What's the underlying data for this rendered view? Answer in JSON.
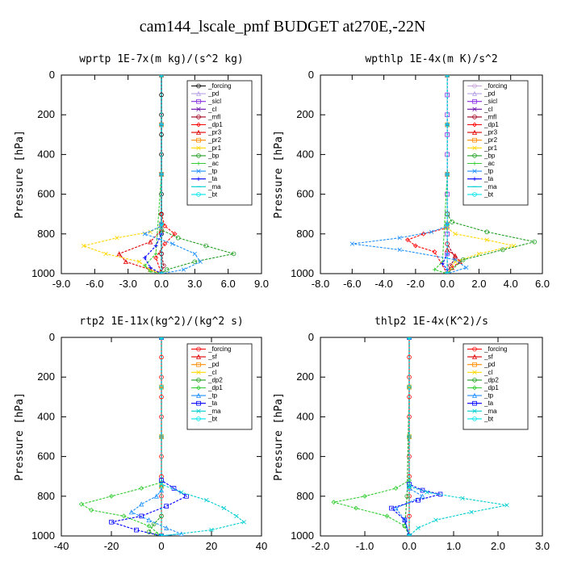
{
  "title": "cam144_lscale_pmf  BUDGET at270E,-22N",
  "chart_data": [
    {
      "type": "line",
      "title": "wprtp  1E-7x(m kg)/(s^2 kg)",
      "ylabel": "Pressure [hPa]",
      "xlim": [
        -9,
        9
      ],
      "ylim": [
        1000,
        0
      ],
      "xticks": [
        "-9.0",
        "-6.0",
        "-3.0",
        "0.0",
        "3.0",
        "6.0",
        "9.0"
      ],
      "yticks": [
        "0",
        "200",
        "400",
        "600",
        "800",
        "1000"
      ],
      "grid": false,
      "legend": "top-right",
      "series": [
        {
          "name": "_forcing",
          "color": "#000000",
          "x": [
            0,
            0,
            0,
            0,
            0,
            0,
            0,
            0,
            0,
            0,
            0
          ],
          "y": [
            0,
            100,
            200,
            300,
            400,
            500,
            600,
            700,
            800,
            900,
            1000
          ]
        },
        {
          "name": "_pd",
          "color": "#b4a0e6",
          "x": [
            0,
            0,
            0,
            0,
            0
          ],
          "y": [
            0,
            250,
            500,
            750,
            1000
          ]
        },
        {
          "name": "_sicl",
          "color": "#8a2be2",
          "x": [
            0,
            0,
            0,
            0,
            0
          ],
          "y": [
            0,
            250,
            500,
            750,
            1000
          ]
        },
        {
          "name": "_cl",
          "color": "#6a0dad",
          "x": [
            0,
            0,
            0,
            0,
            0
          ],
          "y": [
            0,
            250,
            500,
            750,
            1000
          ]
        },
        {
          "name": "_mfl",
          "color": "#a0001e",
          "x": [
            0,
            0,
            0,
            0.2,
            0
          ],
          "y": [
            0,
            500,
            900,
            960,
            1000
          ]
        },
        {
          "name": "_dp1",
          "color": "#ff0000",
          "x": [
            0,
            0,
            0.3,
            1.2,
            0.3,
            -0.5,
            0
          ],
          "y": [
            0,
            700,
            760,
            800,
            850,
            920,
            1000
          ]
        },
        {
          "name": "_pr3",
          "color": "#e00000",
          "x": [
            0,
            0,
            -1.0,
            -3.8,
            -3.2,
            -1.0,
            0
          ],
          "y": [
            0,
            780,
            840,
            900,
            940,
            980,
            1000
          ]
        },
        {
          "name": "_pr2",
          "color": "#ff8c00",
          "x": [
            0,
            0,
            0,
            0,
            0
          ],
          "y": [
            0,
            250,
            500,
            750,
            1000
          ]
        },
        {
          "name": "_pr1",
          "color": "#ffd700",
          "x": [
            0,
            0,
            -1.0,
            -4.0,
            -7.0,
            -5.0,
            -2.0,
            -1.0,
            0
          ],
          "y": [
            0,
            760,
            790,
            820,
            860,
            900,
            940,
            980,
            1000
          ]
        },
        {
          "name": "_bp",
          "color": "#20a020",
          "x": [
            0,
            0,
            1.5,
            4.0,
            6.5,
            3.0,
            0.5,
            0
          ],
          "y": [
            0,
            780,
            820,
            860,
            900,
            940,
            980,
            1000
          ]
        },
        {
          "name": "_ac",
          "color": "#32cd32",
          "x": [
            0,
            0,
            0,
            -0.5,
            -1.5,
            -1.0,
            0
          ],
          "y": [
            0,
            250,
            500,
            900,
            960,
            990,
            1000
          ]
        },
        {
          "name": "_tp",
          "color": "#1e90ff",
          "x": [
            0,
            0,
            -1.5,
            1.0,
            3.0,
            3.5,
            2.0,
            0
          ],
          "y": [
            0,
            760,
            800,
            850,
            900,
            940,
            980,
            1000
          ]
        },
        {
          "name": "_ta",
          "color": "#0000ff",
          "x": [
            0,
            0,
            -0.5,
            -1.5,
            -1.0,
            0
          ],
          "y": [
            0,
            800,
            860,
            920,
            970,
            1000
          ]
        },
        {
          "name": "_ma",
          "color": "#00ced1",
          "x": [
            0,
            0,
            0,
            0,
            0
          ],
          "y": [
            0,
            250,
            500,
            750,
            1000
          ]
        },
        {
          "name": "_bt",
          "color": "#00e5ee",
          "x": [
            0,
            0,
            0,
            0,
            0
          ],
          "y": [
            0,
            250,
            500,
            750,
            1000
          ]
        }
      ]
    },
    {
      "type": "line",
      "title": "wpthlp  1E-4x(m K)/s^2",
      "ylabel": "Pressure [hPa]",
      "xlim": [
        -8,
        6
      ],
      "ylim": [
        1000,
        0
      ],
      "xticks": [
        "-8.0",
        "-6.0",
        "-4.0",
        "-2.0",
        "0.0",
        "2.0",
        "4.0",
        "6.0"
      ],
      "yticks": [
        "0",
        "200",
        "400",
        "600",
        "800",
        "1000"
      ],
      "grid": false,
      "legend": "top-right",
      "series": [
        {
          "name": "_forcing",
          "color": "#c8a0dc",
          "x": [
            0,
            0,
            0,
            0,
            0
          ],
          "y": [
            0,
            250,
            500,
            750,
            1000
          ]
        },
        {
          "name": "_pd",
          "color": "#b4a0e6",
          "x": [
            0,
            0,
            0,
            0,
            0
          ],
          "y": [
            0,
            250,
            500,
            750,
            1000
          ]
        },
        {
          "name": "_sicl",
          "color": "#8a2be2",
          "x": [
            0,
            0,
            0,
            0,
            0,
            0,
            0,
            0,
            0,
            0,
            0
          ],
          "y": [
            0,
            100,
            200,
            300,
            400,
            500,
            600,
            700,
            800,
            900,
            1000
          ]
        },
        {
          "name": "_cl",
          "color": "#6a0dad",
          "x": [
            0,
            0,
            0,
            0,
            0
          ],
          "y": [
            0,
            250,
            500,
            750,
            1000
          ]
        },
        {
          "name": "_mfl",
          "color": "#a0001e",
          "x": [
            0,
            0,
            0.5,
            0.2,
            0
          ],
          "y": [
            0,
            850,
            920,
            960,
            1000
          ]
        },
        {
          "name": "_dp1",
          "color": "#ff0000",
          "x": [
            0,
            0,
            -1.5,
            -2.5,
            -2.0,
            -0.8,
            0
          ],
          "y": [
            0,
            770,
            800,
            830,
            860,
            890,
            1000
          ]
        },
        {
          "name": "_pr3",
          "color": "#e00000",
          "x": [
            0,
            0,
            0.5,
            0.8,
            0.3,
            0
          ],
          "y": [
            0,
            880,
            910,
            940,
            970,
            1000
          ]
        },
        {
          "name": "_pr2",
          "color": "#ff8c00",
          "x": [
            0,
            0,
            0,
            0,
            0
          ],
          "y": [
            0,
            250,
            500,
            750,
            1000
          ]
        },
        {
          "name": "_pr1",
          "color": "#ffd700",
          "x": [
            0,
            0,
            0.5,
            2.5,
            4.2,
            2.0,
            0.5,
            0
          ],
          "y": [
            0,
            770,
            800,
            830,
            860,
            900,
            940,
            1000
          ]
        },
        {
          "name": "_bp",
          "color": "#20a020",
          "x": [
            0,
            0,
            0.3,
            2.5,
            5.5,
            3.5,
            1.0,
            0
          ],
          "y": [
            0,
            700,
            740,
            790,
            840,
            880,
            930,
            1000
          ]
        },
        {
          "name": "_ac",
          "color": "#32cd32",
          "x": [
            0,
            0,
            0,
            -0.3,
            -0.8,
            0
          ],
          "y": [
            0,
            250,
            500,
            940,
            980,
            1000
          ]
        },
        {
          "name": "_tp",
          "color": "#1e90ff",
          "x": [
            0,
            0,
            -1.0,
            -3.0,
            -6.0,
            -3.0,
            0.5,
            1.2,
            0
          ],
          "y": [
            0,
            760,
            790,
            820,
            850,
            880,
            930,
            970,
            1000
          ]
        },
        {
          "name": "_ta",
          "color": "#0000ff",
          "x": [
            0,
            0,
            -0.3,
            0,
            0
          ],
          "y": [
            0,
            900,
            950,
            980,
            1000
          ]
        },
        {
          "name": "_ma",
          "color": "#00ced1",
          "x": [
            0,
            0,
            0,
            0,
            0
          ],
          "y": [
            0,
            250,
            500,
            750,
            1000
          ]
        },
        {
          "name": "_bt",
          "color": "#00e5ee",
          "x": [
            0,
            0,
            0,
            0,
            0
          ],
          "y": [
            0,
            250,
            500,
            750,
            1000
          ]
        }
      ]
    },
    {
      "type": "line",
      "title": "rtp2  1E-11x(kg^2)/(kg^2 s)",
      "ylabel": "Pressure [hPa]",
      "xlim": [
        -40,
        40
      ],
      "ylim": [
        1000,
        0
      ],
      "xticks": [
        "-40",
        "-20",
        "0",
        "20",
        "40"
      ],
      "yticks": [
        "0",
        "200",
        "400",
        "600",
        "800",
        "1000"
      ],
      "grid": false,
      "legend": "top-right",
      "series": [
        {
          "name": "_forcing",
          "color": "#ff0000",
          "x": [
            0,
            0,
            0,
            0,
            0,
            0,
            0,
            0,
            0,
            0,
            0
          ],
          "y": [
            0,
            100,
            200,
            300,
            400,
            500,
            600,
            700,
            800,
            900,
            1000
          ]
        },
        {
          "name": "_sf",
          "color": "#e00000",
          "x": [
            0,
            0,
            0,
            0,
            0
          ],
          "y": [
            0,
            250,
            500,
            750,
            1000
          ]
        },
        {
          "name": "_pd",
          "color": "#ff8c00",
          "x": [
            0,
            0,
            0,
            0,
            0
          ],
          "y": [
            0,
            250,
            500,
            750,
            1000
          ]
        },
        {
          "name": "_cl",
          "color": "#ffd700",
          "x": [
            0,
            0,
            0,
            0,
            0
          ],
          "y": [
            0,
            250,
            500,
            750,
            1000
          ]
        },
        {
          "name": "_dp2",
          "color": "#20a020",
          "x": [
            0,
            0,
            -3,
            -5,
            -2,
            0
          ],
          "y": [
            0,
            900,
            940,
            980,
            995,
            1000
          ]
        },
        {
          "name": "_dp1",
          "color": "#32cd32",
          "x": [
            0,
            0,
            -8,
            -20,
            -32,
            -28,
            -15,
            -5,
            0
          ],
          "y": [
            0,
            730,
            760,
            800,
            840,
            870,
            900,
            950,
            1000
          ]
        },
        {
          "name": "_tp",
          "color": "#1e90ff",
          "x": [
            0,
            0,
            -2,
            -8,
            -12,
            -5,
            2,
            8,
            0
          ],
          "y": [
            0,
            770,
            800,
            840,
            880,
            920,
            960,
            990,
            1000
          ]
        },
        {
          "name": "_ta",
          "color": "#0000ff",
          "x": [
            0,
            0,
            5,
            10,
            2,
            -8,
            -20,
            -10,
            0
          ],
          "y": [
            0,
            720,
            760,
            800,
            850,
            900,
            930,
            970,
            1000
          ]
        },
        {
          "name": "_ma",
          "color": "#00ced1",
          "x": [
            0,
            0,
            8,
            18,
            25,
            30,
            33,
            20,
            0
          ],
          "y": [
            0,
            740,
            780,
            820,
            860,
            900,
            930,
            970,
            1000
          ]
        },
        {
          "name": "_bt",
          "color": "#00e5ee",
          "x": [
            0,
            0,
            0,
            0,
            0
          ],
          "y": [
            0,
            250,
            500,
            750,
            1000
          ]
        }
      ]
    },
    {
      "type": "line",
      "title": "thlp2  1E-4x(K^2)/s",
      "ylabel": "Pressure [hPa]",
      "xlim": [
        -2,
        3
      ],
      "ylim": [
        1000,
        0
      ],
      "xticks": [
        "-2.0",
        "-1.0",
        "0.0",
        "1.0",
        "2.0",
        "3.0"
      ],
      "yticks": [
        "0",
        "200",
        "400",
        "600",
        "800",
        "1000"
      ],
      "grid": false,
      "legend": "top-right",
      "series": [
        {
          "name": "_forcing",
          "color": "#ff0000",
          "x": [
            0,
            0,
            0,
            0,
            0,
            0,
            0,
            0,
            0,
            0,
            0
          ],
          "y": [
            0,
            100,
            200,
            300,
            400,
            500,
            600,
            700,
            800,
            900,
            1000
          ]
        },
        {
          "name": "_sf",
          "color": "#e00000",
          "x": [
            0,
            0,
            0,
            0,
            0
          ],
          "y": [
            0,
            250,
            500,
            750,
            1000
          ]
        },
        {
          "name": "_pd",
          "color": "#ff8c00",
          "x": [
            0,
            0,
            0,
            0,
            0
          ],
          "y": [
            0,
            250,
            500,
            750,
            1000
          ]
        },
        {
          "name": "_cl",
          "color": "#ffd700",
          "x": [
            0,
            0,
            0,
            0,
            0
          ],
          "y": [
            0,
            250,
            500,
            750,
            1000
          ]
        },
        {
          "name": "_dp2",
          "color": "#20a020",
          "x": [
            0,
            0,
            -0.05,
            -0.1,
            0
          ],
          "y": [
            0,
            250,
            800,
            950,
            1000
          ]
        },
        {
          "name": "_dp1",
          "color": "#32cd32",
          "x": [
            0,
            0,
            -0.3,
            -1.0,
            -1.7,
            -1.2,
            -0.5,
            -0.1,
            0
          ],
          "y": [
            0,
            720,
            760,
            800,
            830,
            860,
            900,
            950,
            1000
          ]
        },
        {
          "name": "_tp",
          "color": "#1e90ff",
          "x": [
            0,
            0,
            0.3,
            -0.3,
            -0.1,
            0
          ],
          "y": [
            0,
            760,
            800,
            860,
            920,
            1000
          ]
        },
        {
          "name": "_ta",
          "color": "#0000ff",
          "x": [
            0,
            0,
            0.3,
            0.7,
            0.2,
            -0.4,
            -0.1,
            0
          ],
          "y": [
            0,
            740,
            770,
            790,
            820,
            860,
            920,
            1000
          ]
        },
        {
          "name": "_ma",
          "color": "#00ced1",
          "x": [
            0,
            0,
            0.4,
            1.2,
            2.2,
            1.4,
            0.6,
            0.2,
            0
          ],
          "y": [
            0,
            750,
            780,
            810,
            845,
            880,
            920,
            960,
            1000
          ]
        },
        {
          "name": "_bt",
          "color": "#00e5ee",
          "x": [
            0,
            0,
            0,
            0,
            0
          ],
          "y": [
            0,
            250,
            500,
            750,
            1000
          ]
        }
      ]
    }
  ]
}
